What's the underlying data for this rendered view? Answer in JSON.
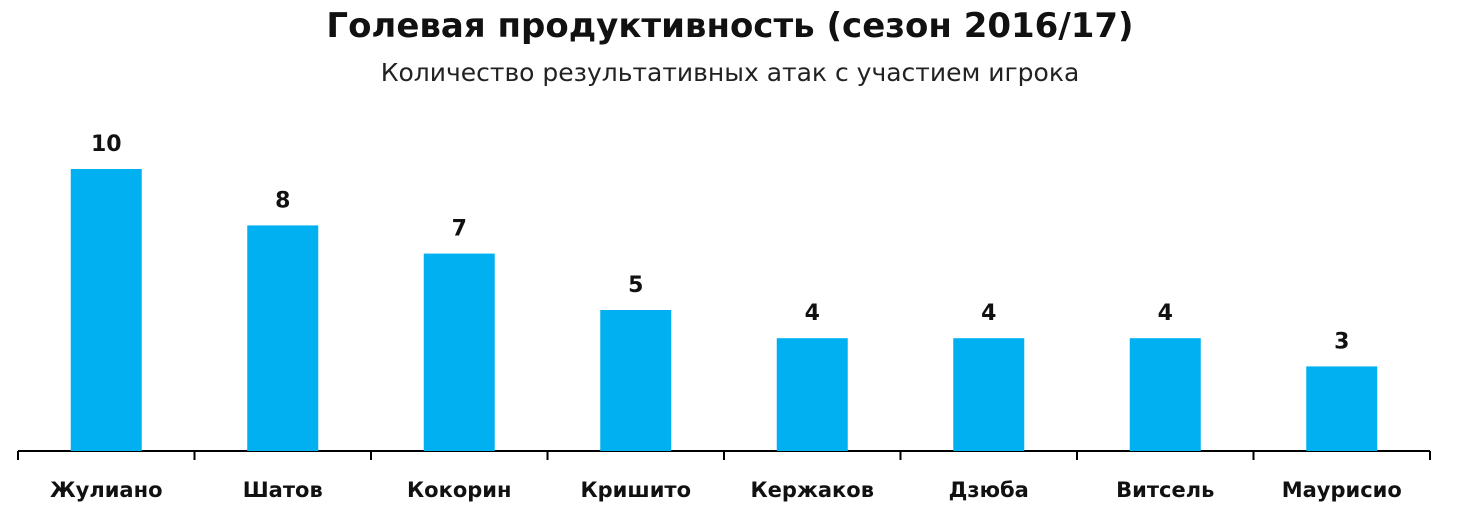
{
  "chart_data": {
    "type": "bar",
    "title": "Голевая продуктивность (сезон  2016/17)",
    "subtitle": "Количество результативных  атак  с участием игрока",
    "categories": [
      "Жулиано",
      "Шатов",
      "Кокорин",
      "Кришито",
      "Кержаков",
      "Дзюба",
      "Витсель",
      "Маурисио"
    ],
    "values": [
      10,
      8,
      7,
      5,
      4,
      4,
      4,
      3
    ],
    "ylim": [
      0,
      10
    ],
    "grid": false,
    "data_labels": true,
    "bar_color": "#00b0f0",
    "axis_color": "#000000"
  }
}
